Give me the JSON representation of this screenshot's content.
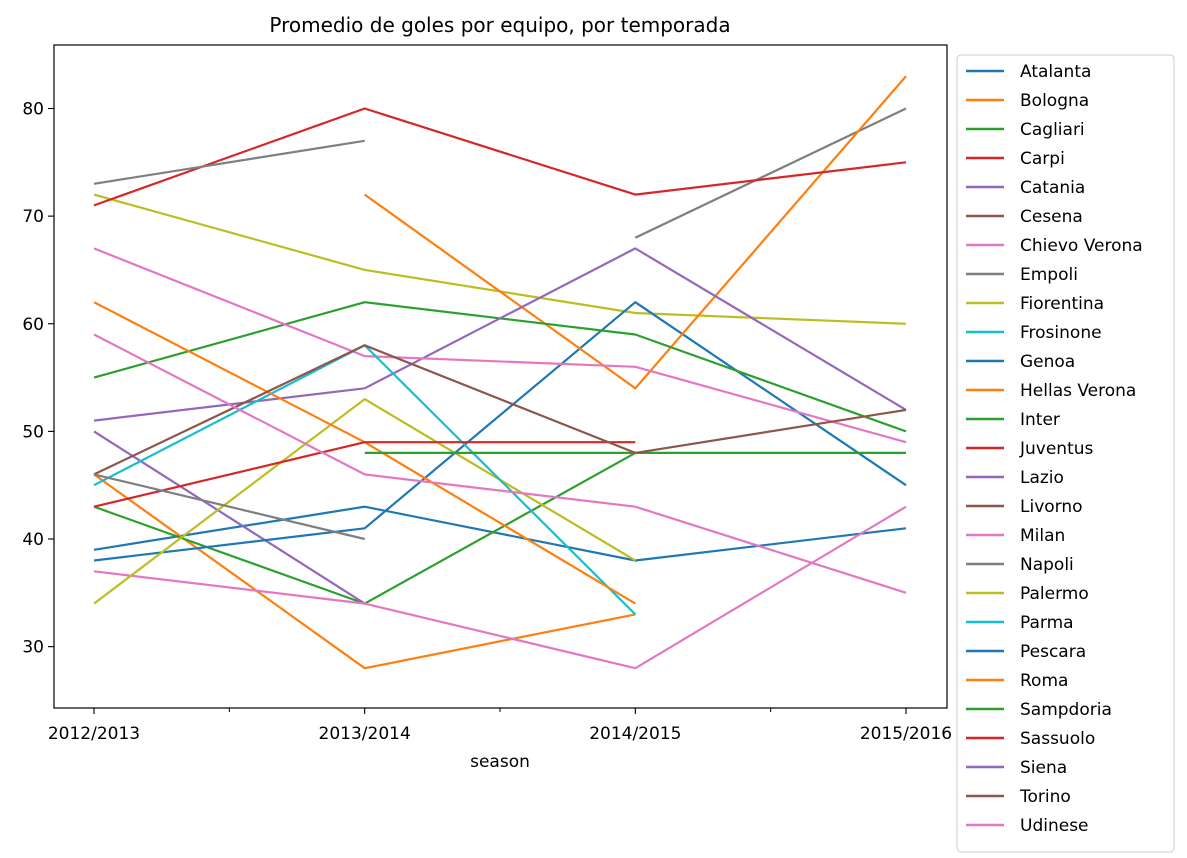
{
  "chart_data": {
    "type": "line",
    "title": "Promedio de goles por equipo, por temporada",
    "xlabel": "season",
    "ylabel": "",
    "categories": [
      "2012/2013",
      "2013/2014",
      "2014/2015",
      "2015/2016"
    ],
    "ylim": [
      24.3,
      85.9
    ],
    "yticks": [
      30,
      40,
      50,
      60,
      70,
      80
    ],
    "grid": false,
    "legend_position": "outside-right",
    "series": [
      {
        "name": "Atalanta",
        "color": "#1f77b4",
        "values": [
          39,
          43,
          38,
          41
        ]
      },
      {
        "name": "Bologna",
        "color": "#ff7f0e",
        "values": [
          46,
          28,
          33,
          null
        ]
      },
      {
        "name": "Cagliari",
        "color": "#2ca02c",
        "values": [
          43,
          34,
          48,
          null
        ]
      },
      {
        "name": "Carpi",
        "color": "#d62728",
        "values": [
          null,
          null,
          null,
          75
        ]
      },
      {
        "name": "Catania",
        "color": "#9467bd",
        "values": [
          50,
          34,
          null,
          null
        ]
      },
      {
        "name": "Cesena",
        "color": "#8c564b",
        "values": [
          null,
          null,
          48,
          null
        ]
      },
      {
        "name": "Chievo Verona",
        "color": "#e377c2",
        "values": [
          37,
          34,
          28,
          43
        ]
      },
      {
        "name": "Empoli",
        "color": "#7f7f7f",
        "values": [
          null,
          null,
          68,
          80
        ]
      },
      {
        "name": "Fiorentina",
        "color": "#bcbd22",
        "values": [
          72,
          65,
          61,
          60
        ]
      },
      {
        "name": "Frosinone",
        "color": "#17becf",
        "values": [
          null,
          null,
          null,
          45
        ]
      },
      {
        "name": "Genoa",
        "color": "#1f77b4",
        "values": [
          38,
          41,
          62,
          45
        ]
      },
      {
        "name": "Hellas Verona",
        "color": "#ff7f0e",
        "values": [
          null,
          72,
          54,
          83
        ]
      },
      {
        "name": "Inter",
        "color": "#2ca02c",
        "values": [
          55,
          62,
          59,
          50
        ]
      },
      {
        "name": "Juventus",
        "color": "#d62728",
        "values": [
          71,
          80,
          72,
          75
        ]
      },
      {
        "name": "Lazio",
        "color": "#9467bd",
        "values": [
          51,
          54,
          67,
          52
        ]
      },
      {
        "name": "Livorno",
        "color": "#8c564b",
        "values": [
          null,
          58,
          null,
          null
        ]
      },
      {
        "name": "Milan",
        "color": "#e377c2",
        "values": [
          67,
          57,
          56,
          49
        ]
      },
      {
        "name": "Napoli",
        "color": "#7f7f7f",
        "values": [
          73,
          77,
          null,
          null
        ]
      },
      {
        "name": "Palermo",
        "color": "#bcbd22",
        "values": [
          34,
          53,
          38,
          null
        ]
      },
      {
        "name": "Parma",
        "color": "#17becf",
        "values": [
          45,
          58,
          33,
          null
        ]
      },
      {
        "name": "Pescara",
        "color": "#1f77b4",
        "values": [
          null,
          null,
          null,
          null
        ]
      },
      {
        "name": "Roma",
        "color": "#ff7f0e",
        "values": [
          62,
          49,
          34,
          null
        ]
      },
      {
        "name": "Sampdoria",
        "color": "#2ca02c",
        "values": [
          null,
          48,
          48,
          48
        ]
      },
      {
        "name": "Sassuolo",
        "color": "#d62728",
        "values": [
          43,
          49,
          49,
          null
        ]
      },
      {
        "name": "Siena",
        "color": "#9467bd",
        "values": [
          null,
          null,
          null,
          null
        ]
      },
      {
        "name": "Torino",
        "color": "#8c564b",
        "values": [
          46,
          58,
          48,
          52
        ]
      },
      {
        "name": "Udinese",
        "color": "#e377c2",
        "values": [
          59,
          46,
          43,
          35
        ]
      },
      {
        "name": "",
        "color": "#7f7f7f",
        "values": [
          46,
          40,
          null,
          null
        ]
      }
    ]
  }
}
